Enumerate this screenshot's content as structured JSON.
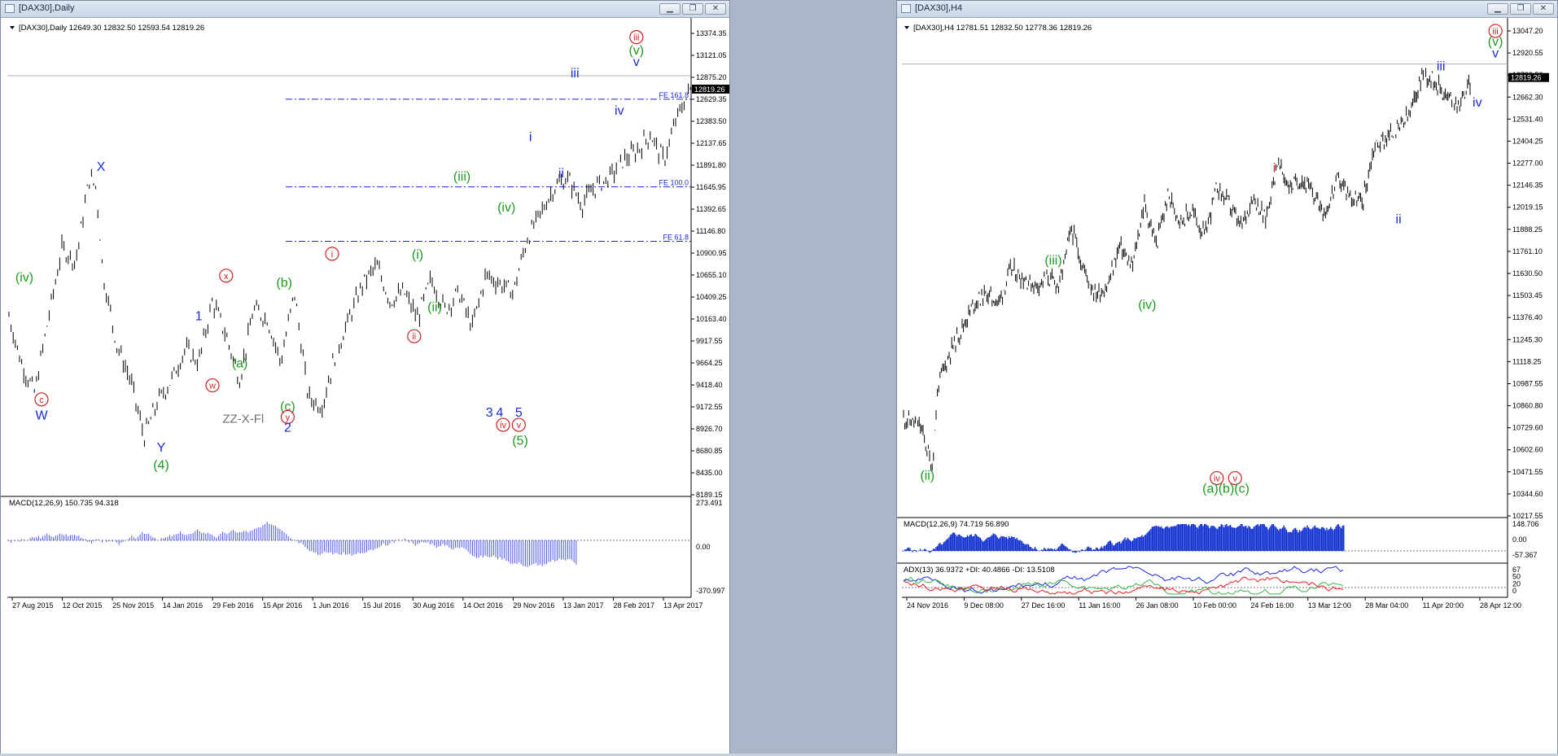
{
  "windows": [
    {
      "title": "[DAX30],Daily",
      "buttons": [
        "minimize",
        "restore",
        "close"
      ]
    },
    {
      "title": "[DAX30],H4",
      "buttons": [
        "minimize",
        "restore",
        "close"
      ]
    }
  ],
  "chart_data": [
    {
      "type": "line",
      "symbol_header": "[DAX30],Daily  12649.30 12832.50 12593.54 12819.26",
      "current_price": "12819.26",
      "ylim": [
        8190,
        13450
      ],
      "y_ticks": [
        "13374.35",
        "13121.05",
        "12875.20",
        "12629.35",
        "12383.50",
        "12137.65",
        "11891.80",
        "11645.95",
        "11392.65",
        "11146.80",
        "10900.95",
        "10655.10",
        "10409.25",
        "10163.40",
        "9917.55",
        "9664.25",
        "9418.40",
        "9172.55",
        "8926.70",
        "8680.85",
        "8435.00",
        "8189.15"
      ],
      "x_ticks": [
        "27 Aug 2015",
        "12 Oct 2015",
        "25 Nov 2015",
        "14 Jan 2016",
        "29 Feb 2016",
        "15 Apr 2016",
        "1 Jun 2016",
        "15 Jul 2016",
        "30 Aug 2016",
        "14 Oct 2016",
        "29 Nov 2016",
        "13 Jan 2017",
        "28 Feb 2017",
        "13 Apr 2017"
      ],
      "fib_levels": [
        {
          "label": "FE 161.8",
          "value": 12700
        },
        {
          "label": "FE 100.0",
          "value": 11700
        },
        {
          "label": "FE 61.8",
          "value": 11080
        }
      ],
      "price_path": {
        "x": [
          0,
          2,
          4,
          6,
          8,
          10,
          12,
          13,
          14,
          16,
          18,
          20,
          22,
          24,
          26,
          28,
          30,
          32,
          34,
          36,
          38,
          40,
          42,
          44,
          46,
          48,
          50,
          52,
          54,
          56,
          58,
          60,
          62,
          64,
          66,
          68,
          70,
          72,
          74,
          76,
          78,
          80,
          82,
          84,
          86,
          88,
          90,
          92,
          94,
          96,
          98,
          100
        ],
        "y": [
          10300,
          9700,
          9350,
          10200,
          11000,
          10850,
          11800,
          11700,
          10700,
          9900,
          9500,
          8850,
          9250,
          9500,
          9850,
          9700,
          10400,
          10000,
          9500,
          10300,
          10200,
          9700,
          10500,
          9300,
          9200,
          9800,
          10200,
          10600,
          10800,
          10400,
          10500,
          10200,
          10650,
          10300,
          10500,
          10100,
          10700,
          10600,
          10500,
          11100,
          11400,
          11700,
          11800,
          11500,
          11700,
          11800,
          12000,
          12100,
          12300,
          12000,
          12500,
          12830
        ]
      },
      "wave_labels": [
        {
          "text": "(iv)",
          "color": "#1f9a1f",
          "x": 2.5,
          "y": 10620
        },
        {
          "text": "c",
          "color": "#cc2222",
          "circled": true,
          "x": 5,
          "y": 9240
        },
        {
          "text": "W",
          "color": "#1a2adc",
          "x": 5,
          "y": 9050
        },
        {
          "text": "X",
          "color": "#1a2adc",
          "x": 13.7,
          "y": 11880
        },
        {
          "text": "Y",
          "color": "#1a2adc",
          "x": 22.5,
          "y": 8680
        },
        {
          "text": "(4)",
          "color": "#1f9a1f",
          "x": 22.5,
          "y": 8480
        },
        {
          "text": "1",
          "color": "#1a2adc",
          "x": 28,
          "y": 10180
        },
        {
          "text": "w",
          "color": "#cc2222",
          "circled": true,
          "x": 30,
          "y": 9400
        },
        {
          "text": "x",
          "color": "#cc2222",
          "circled": true,
          "x": 32,
          "y": 10650
        },
        {
          "text": "(a)",
          "color": "#1f9a1f",
          "x": 34,
          "y": 9640
        },
        {
          "text": "ZZ-X-Fl",
          "color": "#6e6e6e",
          "x": 34.5,
          "y": 9010
        },
        {
          "text": "(b)",
          "color": "#1f9a1f",
          "x": 40.5,
          "y": 10560
        },
        {
          "text": "(c)",
          "color": "#1f9a1f",
          "x": 41,
          "y": 9150
        },
        {
          "text": "y",
          "color": "#cc2222",
          "circled": true,
          "x": 41,
          "y": 9040
        },
        {
          "text": "2",
          "color": "#1a2adc",
          "x": 41,
          "y": 8910
        },
        {
          "text": "i",
          "color": "#cc2222",
          "circled": true,
          "x": 47.5,
          "y": 10900
        },
        {
          "text": "ii",
          "color": "#cc2222",
          "circled": true,
          "x": 59.5,
          "y": 9960
        },
        {
          "text": "(i)",
          "color": "#1f9a1f",
          "x": 60,
          "y": 10880
        },
        {
          "text": "(ii)",
          "color": "#1f9a1f",
          "x": 62.5,
          "y": 10280
        },
        {
          "text": "(iii)",
          "color": "#1f9a1f",
          "x": 66.5,
          "y": 11770
        },
        {
          "text": "(iv)",
          "color": "#1f9a1f",
          "x": 73,
          "y": 11420
        },
        {
          "text": "i",
          "color": "#1a2adc",
          "x": 76.5,
          "y": 12220
        },
        {
          "text": "ii",
          "color": "#1a2adc",
          "x": 81,
          "y": 11810
        },
        {
          "text": "iii",
          "color": "#1a2adc",
          "x": 83,
          "y": 12950
        },
        {
          "text": "iv",
          "color": "#1a2adc",
          "x": 89.5,
          "y": 12520
        },
        {
          "text": "v",
          "color": "#1a2adc",
          "x": 92,
          "y": 13080
        },
        {
          "text": "(v)",
          "color": "#1f9a1f",
          "x": 92,
          "y": 13210
        },
        {
          "text": "iii",
          "color": "#cc2222",
          "circled": true,
          "x": 92,
          "y": 13370
        },
        {
          "text": "3",
          "color": "#1a2adc",
          "x": 70.5,
          "y": 9080
        },
        {
          "text": "4",
          "color": "#1a2adc",
          "x": 72,
          "y": 9080
        },
        {
          "text": "5",
          "color": "#1a2adc",
          "x": 74.8,
          "y": 9080
        },
        {
          "text": "iv",
          "color": "#cc2222",
          "circled": true,
          "x": 72.5,
          "y": 8950
        },
        {
          "text": "v",
          "color": "#cc2222",
          "circled": true,
          "x": 74.8,
          "y": 8950
        },
        {
          "text": "(5)",
          "color": "#1f9a1f",
          "x": 75,
          "y": 8760
        }
      ],
      "indicator": {
        "label": "MACD(12,26,9) 150.735 94.318",
        "ticks": [
          "273.491",
          "0.00",
          "-370.997"
        ]
      }
    },
    {
      "type": "line",
      "symbol_header": "[DAX30],H4  12781.51 12832.50 12778.36 12819.26",
      "current_price": "12819.26",
      "ylim": [
        10150,
        13100
      ],
      "y_ticks": [
        "13047.20",
        "12920.55",
        "12789.50",
        "12662.30",
        "12531.40",
        "12404.25",
        "12277.00",
        "12146.35",
        "12019.15",
        "11888.25",
        "11761.10",
        "11630.50",
        "11503.45",
        "11376.40",
        "11245.30",
        "11118.25",
        "10987.55",
        "10860.80",
        "10729.60",
        "10602.60",
        "10471.55",
        "10344.60",
        "10217.55"
      ],
      "x_ticks": [
        "24 Nov 2016",
        "9 Dec 08:00",
        "27 Dec 16:00",
        "11 Jan 16:00",
        "26 Jan 08:00",
        "10 Feb 00:00",
        "24 Feb 16:00",
        "13 Mar 12:00",
        "28 Mar 04:00",
        "11 Apr 20:00",
        "28 Apr 12:00"
      ],
      "price_path": {
        "x": [
          0,
          3,
          5,
          6,
          8,
          10,
          12,
          14,
          16,
          18,
          20,
          22,
          24,
          26,
          28,
          30,
          32,
          34,
          36,
          38,
          40,
          42,
          44,
          46,
          48,
          50,
          52,
          54,
          56,
          58,
          60,
          62,
          64,
          66,
          68,
          70,
          72,
          74,
          76,
          78,
          80,
          82,
          84,
          86,
          88,
          90,
          92,
          94
        ],
        "y": [
          10750,
          10700,
          10450,
          10950,
          11150,
          11300,
          11450,
          11500,
          11450,
          11650,
          11600,
          11550,
          11600,
          11550,
          11900,
          11650,
          11500,
          11550,
          11800,
          11650,
          12050,
          11800,
          12100,
          11950,
          12000,
          11850,
          12150,
          12050,
          11900,
          12100,
          11950,
          12300,
          12150,
          12200,
          12100,
          12000,
          12200,
          12100,
          12050,
          12400,
          12450,
          12500,
          12600,
          12850,
          12800,
          12700,
          12650,
          12800
        ]
      },
      "wave_labels": [
        {
          "text": "(ii)",
          "color": "#1f9a1f",
          "x": 4.2,
          "y": 10370
        },
        {
          "text": "(iii)",
          "color": "#1f9a1f",
          "x": 25,
          "y": 11680
        },
        {
          "text": "(iv)",
          "color": "#1f9a1f",
          "x": 40.5,
          "y": 11410
        },
        {
          "text": "i",
          "color": "#cc2222",
          "x": 61.5,
          "y": 12240
        },
        {
          "text": "ii",
          "color": "#1a2adc",
          "x": 82,
          "y": 11930
        },
        {
          "text": "iii",
          "color": "#1a2adc",
          "x": 89,
          "y": 12860
        },
        {
          "text": "iv",
          "color": "#1a2adc",
          "x": 95,
          "y": 12640
        },
        {
          "text": "v",
          "color": "#1a2adc",
          "x": 98,
          "y": 12940
        },
        {
          "text": "(v)",
          "color": "#1f9a1f",
          "x": 98,
          "y": 13010
        },
        {
          "text": "iii",
          "color": "#cc2222",
          "circled": true,
          "x": 98,
          "y": 13080
        },
        {
          "text": "iv",
          "color": "#cc2222",
          "circled": true,
          "x": 52,
          "y": 10360
        },
        {
          "text": "v",
          "color": "#cc2222",
          "circled": true,
          "x": 55,
          "y": 10360
        },
        {
          "text": "(a)(b)(c)",
          "color": "#1f9a1f",
          "x": 53.5,
          "y": 10290
        }
      ],
      "indicators": [
        {
          "label": "MACD(12,26,9) 74.719 56.890",
          "ticks": [
            "148.706",
            "0.00",
            "-57.367"
          ]
        },
        {
          "label": "ADX(13) 36.9372 +DI: 40.4866 -DI: 13.5108",
          "ticks": [
            "67",
            "50",
            "20",
            "0"
          ]
        }
      ]
    }
  ]
}
